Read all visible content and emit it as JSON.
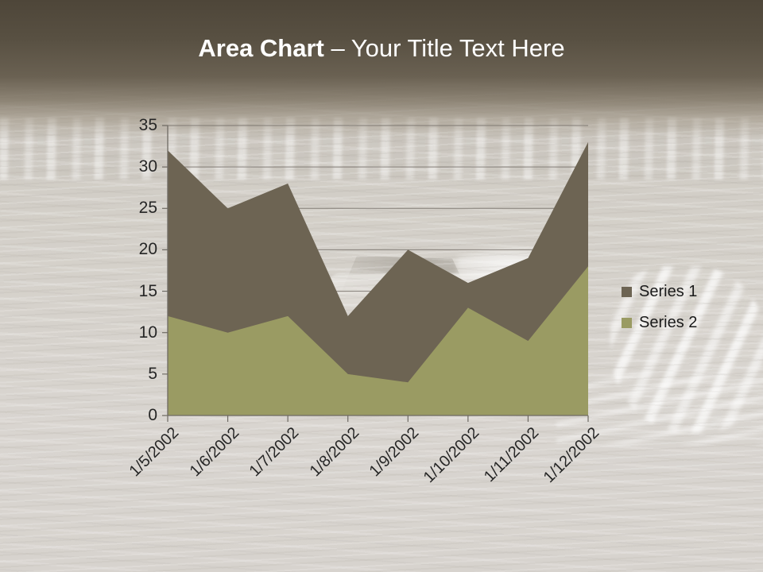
{
  "slide": {
    "title": {
      "bold": "Area Chart",
      "rest": " – Your Title Text Here"
    }
  },
  "chart_data": {
    "type": "area",
    "stacking": "none",
    "title": "Area Chart – Your Title Text Here",
    "categories": [
      "1/5/2002",
      "1/6/2002",
      "1/7/2002",
      "1/8/2002",
      "1/9/2002",
      "1/10/2002",
      "1/11/2002",
      "1/12/2002"
    ],
    "series": [
      {
        "name": "Series 1",
        "color": "#6d6453",
        "values": [
          32,
          25,
          28,
          12,
          20,
          16,
          19,
          33
        ]
      },
      {
        "name": "Series 2",
        "color": "#9a9b63",
        "values": [
          12,
          10,
          12,
          5,
          4,
          13,
          9,
          18
        ]
      }
    ],
    "xlabel": "",
    "ylabel": "",
    "ylim": [
      0,
      35
    ],
    "ytick_step": 5,
    "y_ticks": [
      0,
      5,
      10,
      15,
      20,
      25,
      30,
      35
    ],
    "grid": "horizontal",
    "legend_position": "right",
    "x_label_rotation_deg": -45,
    "colors": {
      "gridline": "#746f68",
      "axis": "#6e6a63",
      "tick_label": "#262626",
      "legend_text": "#1a1a1a",
      "title_text": "#ffffff"
    }
  }
}
